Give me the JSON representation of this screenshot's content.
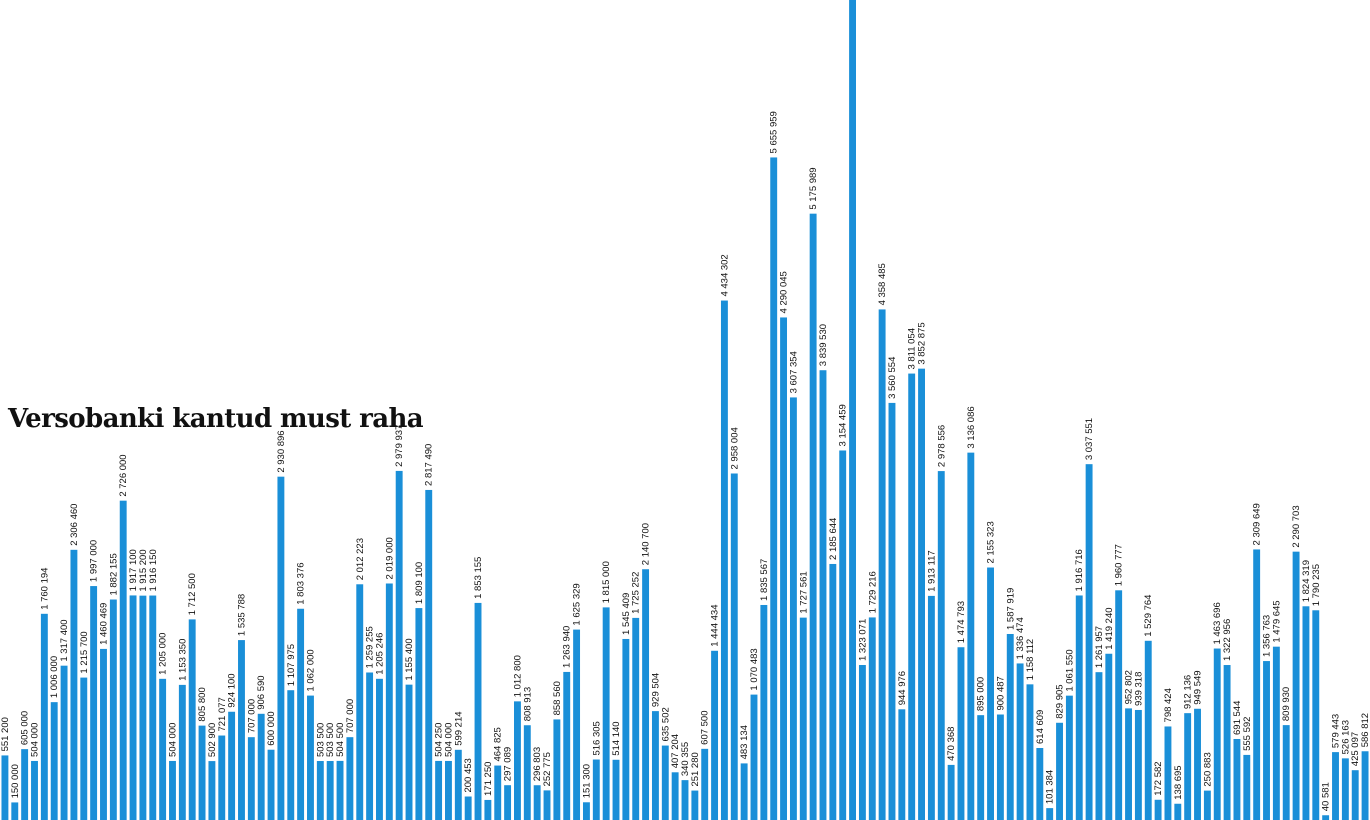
{
  "chart_data": {
    "type": "bar",
    "title": "Versobanki kantud must raha",
    "xlabel": "",
    "ylabel": "",
    "ylim": [
      0,
      7000000
    ],
    "grid": false,
    "bar_color": "#1a8fd8",
    "values": [
      551200,
      150000,
      605000,
      504000,
      1760194,
      1006000,
      1317400,
      2306460,
      1215700,
      1997000,
      1460469,
      1882155,
      2726000,
      1917100,
      1915200,
      1916150,
      1205000,
      504000,
      1153350,
      1712500,
      805800,
      502900,
      721077,
      924100,
      1535788,
      707000,
      906590,
      600000,
      2930896,
      1107975,
      1803376,
      1062000,
      503500,
      503500,
      504500,
      707000,
      2012223,
      1259255,
      1205246,
      2019000,
      2979937,
      1155400,
      1809100,
      2817490,
      504250,
      504000,
      599214,
      200453,
      1853155,
      171250,
      464825,
      297089,
      1012800,
      808913,
      296803,
      252775,
      858560,
      1263940,
      1625329,
      151300,
      516305,
      1815000,
      514140,
      1545409,
      1725252,
      2140700,
      929504,
      635502,
      407204,
      340355,
      251280,
      607500,
      1444434,
      4434302,
      2958004,
      483134,
      1070483,
      1835567,
      5655959,
      4290045,
      3607354,
      1727561,
      5175989,
      3839530,
      2185644,
      3154459,
      7000000,
      1323071,
      1729216,
      4358485,
      3560554,
      944976,
      3811054,
      3852875,
      1913117,
      2978556,
      470368,
      1474793,
      3136086,
      895000,
      2155323,
      900487,
      1587919,
      1336474,
      1158112,
      614609,
      101384,
      829905,
      1061550,
      1916716,
      3037551,
      1261957,
      1419240,
      1960777,
      952802,
      939318,
      1529764,
      172582,
      798424,
      138695,
      912136,
      949549,
      250883,
      1463696,
      1322956,
      691544,
      555592,
      2309649,
      1356763,
      1479645,
      809930,
      2290703,
      1824319,
      1790235,
      40581,
      579443,
      526163,
      425097,
      586812
    ],
    "labels": [
      "551 200",
      "150 000",
      "605 000",
      "504 000",
      "1 760 194",
      "1 006 000",
      "1 317 400",
      "2 306 460",
      "1 215 700",
      "1 997 000",
      "1 460 469",
      "1 882 155",
      "2 726 000",
      "1 917 100",
      "1 915 200",
      "1 916 150",
      "1 205 000",
      "504 000",
      "1 153 350",
      "1 712 500",
      "805 800",
      "502 900",
      "721 077",
      "924 100",
      "1 535 788",
      "707 000",
      "906 590",
      "600 000",
      "2 930 896",
      "1 107 975",
      "1 803 376",
      "1 062 000",
      "503 500",
      "503 500",
      "504 500",
      "707 000",
      "2 012 223",
      "1 259 255",
      "1 205 246",
      "2 019 000",
      "2 979 937",
      "1 155 400",
      "1 809 100",
      "2 817 490",
      "504 250",
      "504 000",
      "599 214",
      "200 453",
      "1 853 155",
      "171 250",
      "464 825",
      "297 089",
      "1 012 800",
      "808 913",
      "296 803",
      "252 775",
      "858 560",
      "1 263 940",
      "1 625 329",
      "151 300",
      "516 305",
      "1 815 000",
      "514 140",
      "1 545 409",
      "1 725 252",
      "2 140 700",
      "929 504",
      "635 502",
      "407 204",
      "340 355",
      "251 280",
      "607 500",
      "1 444 434",
      "4 434 302",
      "2 958 004",
      "483 134",
      "1 070 483",
      "1 835 567",
      "5 655 959",
      "4 290 045",
      "3 607 354",
      "1 727 561",
      "5 175 989",
      "3 839 530",
      "2 185 644",
      "3 154 459",
      "",
      "1 323 071",
      "1 729 216",
      "4 358 485",
      "3 560 554",
      "944 976",
      "3 811 054",
      "3 852 875",
      "1 913 117",
      "2 978 556",
      "470 368",
      "1 474 793",
      "3 136 086",
      "895 000",
      "2 155 323",
      "900 487",
      "1 587 919",
      "1 336 474",
      "1 158 112",
      "614 609",
      "101 384",
      "829 905",
      "1 061 550",
      "1 916 716",
      "3 037 551",
      "1 261 957",
      "1 419 240",
      "1 960 777",
      "952 802",
      "939 318",
      "1 529 764",
      "172 582",
      "798 424",
      "138 695",
      "912 136",
      "949 549",
      "250 883",
      "1 463 696",
      "1 322 956",
      "691 544",
      "555 592",
      "2 309 649",
      "1 356 763",
      "1 479 645",
      "809 930",
      "2 290 703",
      "1 824 319",
      "1 790 235",
      "40 581",
      "579 443",
      "526 163",
      "425 097",
      "586 812"
    ]
  }
}
